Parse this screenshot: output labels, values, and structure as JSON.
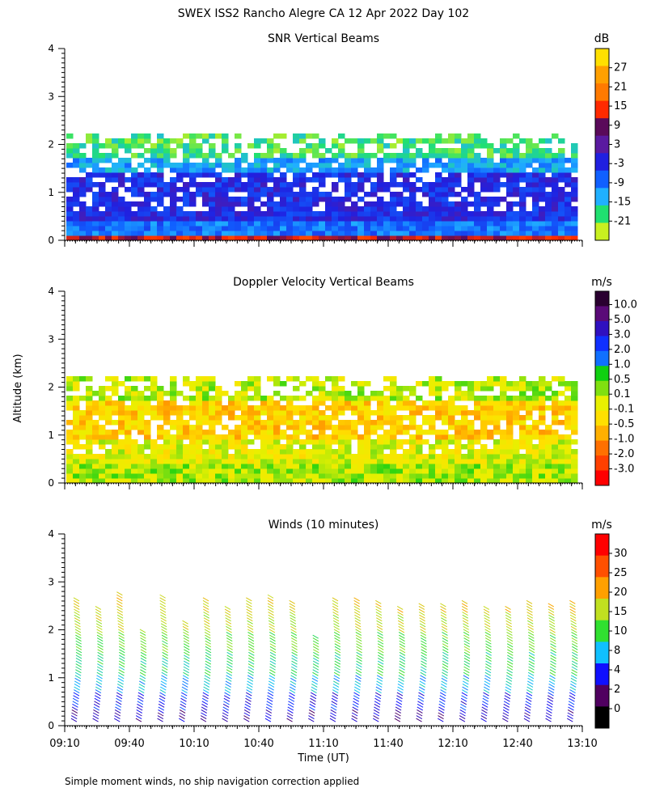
{
  "figure": {
    "title": "SWEX ISS2 Rancho Alegre CA  12 Apr 2022 Day 102",
    "shared_ylabel": "Altitude (km)",
    "shared_xlabel": "Time (UT)",
    "footnote": "Simple moment winds, no ship navigation correction applied"
  },
  "chart_data": [
    {
      "type": "heatmap",
      "title": "SNR Vertical Beams",
      "colorbar_unit": "dB",
      "colorbar_ticks": [
        "27",
        "21",
        "15",
        "9",
        "3",
        "-3",
        "-9",
        "-15",
        "-21"
      ],
      "colorbar_colors": [
        "#ffe000",
        "#ffa000",
        "#ff7a00",
        "#ff2a00",
        "#5a0a5a",
        "#5a1aa0",
        "#2020e0",
        "#1060ff",
        "#20b0ff",
        "#20e070",
        "#c8f020"
      ],
      "x_tick_labels": [
        "09:10",
        "09:40",
        "10:10",
        "10:40",
        "11:10",
        "11:40",
        "12:10",
        "12:40",
        "13:10"
      ],
      "y_tick_labels": [
        "0",
        "1",
        "2",
        "3",
        "4"
      ],
      "xlim_hours_ut": [
        9.1667,
        13.1667
      ],
      "ylim_km": [
        0,
        4
      ],
      "coverage_top_km": 2.3,
      "layers": [
        {
          "range_km": [
            0.0,
            0.15
          ],
          "snr_db": 12,
          "label": "near-surface strong return"
        },
        {
          "range_km": [
            0.15,
            0.5
          ],
          "snr_db": -9
        },
        {
          "range_km": [
            0.5,
            1.5
          ],
          "snr_db": -3
        },
        {
          "range_km": [
            1.5,
            1.8
          ],
          "snr_db": -12
        },
        {
          "range_km": [
            1.8,
            2.3
          ],
          "snr_db": -19
        }
      ],
      "grid": false
    },
    {
      "type": "heatmap",
      "title": "Doppler Velocity Vertical Beams",
      "colorbar_unit": "m/s",
      "colorbar_ticks": [
        "10.0",
        "5.0",
        "3.0",
        "2.0",
        "1.0",
        "0.5",
        "0.1",
        "-0.1",
        "-0.5",
        "-1.0",
        "-2.0",
        "-3.0"
      ],
      "colorbar_colors": [
        "#2a0030",
        "#5a0a78",
        "#3010c0",
        "#1030ff",
        "#1070ff",
        "#10d010",
        "#80e010",
        "#e8f000",
        "#ffe000",
        "#ffb000",
        "#ff7000",
        "#ff4000",
        "#ff0000"
      ],
      "x_tick_labels": [
        "09:10",
        "09:40",
        "10:10",
        "10:40",
        "11:10",
        "11:40",
        "12:10",
        "12:40",
        "13:10"
      ],
      "y_tick_labels": [
        "0",
        "1",
        "2",
        "3",
        "4"
      ],
      "xlim_hours_ut": [
        9.1667,
        13.1667
      ],
      "ylim_km": [
        0,
        4
      ],
      "coverage_top_km": 2.3,
      "layers": [
        {
          "range_km": [
            0.0,
            0.5
          ],
          "velocity_ms": -0.2
        },
        {
          "range_km": [
            0.5,
            1.0
          ],
          "velocity_ms": -0.6
        },
        {
          "range_km": [
            1.0,
            1.8
          ],
          "velocity_ms": -1.2
        },
        {
          "range_km": [
            1.8,
            2.3
          ],
          "velocity_ms": -0.3
        }
      ],
      "grid": false
    },
    {
      "type": "scatter",
      "title": "Winds (10 minutes)",
      "colorbar_unit": "m/s",
      "colorbar_ticks": [
        "30",
        "25",
        "20",
        "15",
        "10",
        "8",
        "4",
        "2",
        "0"
      ],
      "colorbar_colors": [
        "#ff0000",
        "#ff5000",
        "#ffa000",
        "#c0e020",
        "#30e030",
        "#10c0ff",
        "#1010ff",
        "#500060",
        "#000000"
      ],
      "x_tick_labels": [
        "09:10",
        "09:40",
        "10:10",
        "10:40",
        "11:10",
        "11:40",
        "12:10",
        "12:40",
        "13:10"
      ],
      "y_tick_labels": [
        "0",
        "1",
        "2",
        "3",
        "4"
      ],
      "xlim_hours_ut": [
        9.1667,
        13.1667
      ],
      "ylim_km": [
        0,
        4
      ],
      "profile_times_ut": [
        "09:15",
        "09:25",
        "09:35",
        "09:45",
        "09:55",
        "10:05",
        "10:15",
        "10:25",
        "10:35",
        "10:45",
        "10:55",
        "11:05",
        "11:15",
        "11:25",
        "11:35",
        "11:45",
        "11:55",
        "12:05",
        "12:15",
        "12:25",
        "12:35",
        "12:45",
        "12:55",
        "13:05"
      ],
      "profile_top_km": [
        2.7,
        2.55,
        2.85,
        2.05,
        2.75,
        2.2,
        2.7,
        2.55,
        2.7,
        2.75,
        2.65,
        1.95,
        2.7,
        2.7,
        2.65,
        2.55,
        2.6,
        2.6,
        2.65,
        2.5,
        2.5,
        2.65,
        2.6,
        2.65
      ],
      "speed_profile_ms": [
        {
          "altitude_km": 0.2,
          "speed_ms": 6
        },
        {
          "altitude_km": 0.5,
          "speed_ms": 8
        },
        {
          "altitude_km": 0.9,
          "speed_ms": 12
        },
        {
          "altitude_km": 1.3,
          "speed_ms": 15
        },
        {
          "altitude_km": 1.8,
          "speed_ms": 17
        },
        {
          "altitude_km": 2.2,
          "speed_ms": 20
        },
        {
          "altitude_km": 2.6,
          "speed_ms": 22
        }
      ],
      "grid": false
    }
  ]
}
